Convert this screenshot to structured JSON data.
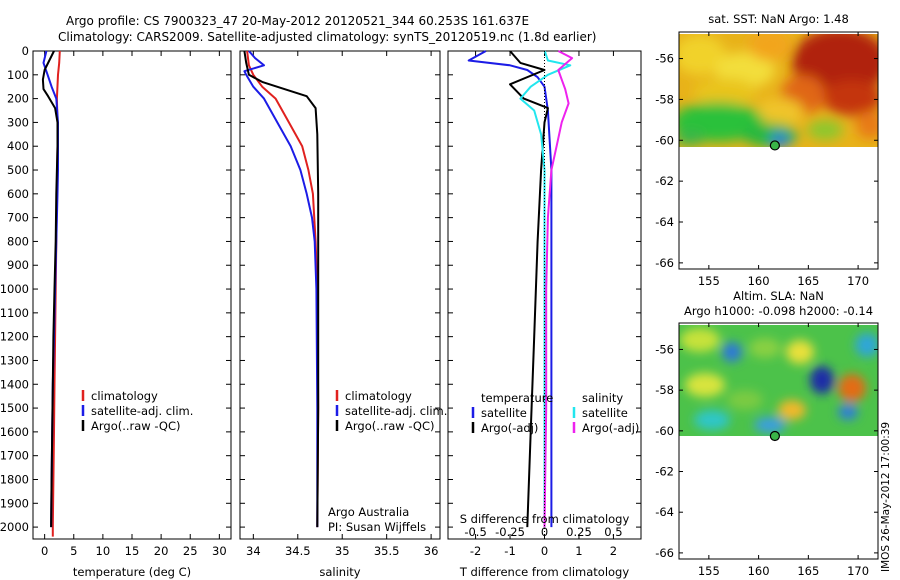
{
  "header": {
    "line1": "Argo profile: CS 7900323_47 20-May-2012 20120521_344 60.253S 161.637E",
    "line2": "Climatology: CARS2009. Satellite-adjusted climatology: synTS_20120519.nc (1.8d earlier)"
  },
  "credit": {
    "line1": "Argo Australia",
    "line2": "PI: Susan Wijffels"
  },
  "stamp": "IMOS 26-May-2012 17:00:39",
  "colors": {
    "climatology": "#e0211f",
    "satellite": "#1c1ce6",
    "argo": "#000000",
    "salinity_satellite": "#22e6ee",
    "salinity_argo": "#ee22ee"
  },
  "chart_data": [
    {
      "type": "line",
      "name": "temperature-profile",
      "xlabel": "temperature (deg C)",
      "ylabel": "",
      "xlim": [
        -2,
        32
      ],
      "ylim": [
        2050,
        0
      ],
      "xticks": [
        0,
        5,
        10,
        15,
        20,
        25,
        30
      ],
      "yticks": [
        0,
        100,
        200,
        300,
        400,
        500,
        600,
        700,
        800,
        900,
        1000,
        1100,
        1200,
        1300,
        1400,
        1500,
        1600,
        1700,
        1800,
        1900,
        2000
      ],
      "legend": {
        "placement": "lower-center",
        "entries": [
          "climatology",
          "satellite-adj. clim.",
          "Argo(..raw -QC)"
        ]
      },
      "series": [
        {
          "name": "climatology",
          "color": "#e0211f",
          "points": [
            [
              2.6,
              0
            ],
            [
              2.5,
              50
            ],
            [
              2.3,
              100
            ],
            [
              2.1,
              200
            ],
            [
              2.2,
              300
            ],
            [
              2.2,
              400
            ],
            [
              2.1,
              600
            ],
            [
              2.0,
              800
            ],
            [
              1.9,
              1000
            ],
            [
              1.8,
              1200
            ],
            [
              1.7,
              1400
            ],
            [
              1.6,
              1600
            ],
            [
              1.5,
              1800
            ],
            [
              1.4,
              2000
            ],
            [
              1.4,
              2040
            ]
          ]
        },
        {
          "name": "satellite-adj. clim.",
          "color": "#1c1ce6",
          "points": [
            [
              0.3,
              0
            ],
            [
              -0.2,
              50
            ],
            [
              0.5,
              100
            ],
            [
              1.2,
              150
            ],
            [
              2.0,
              200
            ],
            [
              2.3,
              300
            ],
            [
              2.3,
              400
            ],
            [
              2.3,
              500
            ],
            [
              2.2,
              600
            ],
            [
              2.0,
              800
            ],
            [
              1.8,
              1000
            ],
            [
              1.6,
              1200
            ],
            [
              1.4,
              1400
            ],
            [
              1.3,
              1600
            ],
            [
              1.2,
              1800
            ],
            [
              1.1,
              2000
            ]
          ]
        },
        {
          "name": "Argo(..raw -QC)",
          "color": "#000000",
          "points": [
            [
              1.6,
              0
            ],
            [
              0.8,
              40
            ],
            [
              0.0,
              80
            ],
            [
              -0.3,
              120
            ],
            [
              -0.2,
              160
            ],
            [
              0.6,
              190
            ],
            [
              1.8,
              240
            ],
            [
              2.2,
              300
            ],
            [
              2.2,
              400
            ],
            [
              2.1,
              500
            ],
            [
              2.0,
              600
            ],
            [
              1.9,
              800
            ],
            [
              1.7,
              1000
            ],
            [
              1.5,
              1200
            ],
            [
              1.4,
              1400
            ],
            [
              1.3,
              1600
            ],
            [
              1.2,
              1800
            ],
            [
              1.1,
              2000
            ]
          ]
        }
      ]
    },
    {
      "type": "line",
      "name": "salinity-profile",
      "xlabel": "salinity",
      "ylabel": "",
      "xlim": [
        33.85,
        36.1
      ],
      "ylim": [
        2050,
        0
      ],
      "xticks": [
        34,
        34.5,
        35,
        35.5,
        36
      ],
      "xtick_labels": [
        "34",
        "34.5",
        "35",
        "35.5",
        "36"
      ],
      "legend": {
        "placement": "lower-center",
        "entries": [
          "climatology",
          "satellite-adj. clim.",
          "Argo(..raw -QC)"
        ]
      },
      "series": [
        {
          "name": "climatology",
          "color": "#e0211f",
          "points": [
            [
              33.93,
              0
            ],
            [
              33.95,
              60
            ],
            [
              34.0,
              100
            ],
            [
              34.1,
              150
            ],
            [
              34.25,
              200
            ],
            [
              34.4,
              300
            ],
            [
              34.55,
              400
            ],
            [
              34.62,
              500
            ],
            [
              34.67,
              600
            ],
            [
              34.7,
              800
            ],
            [
              34.72,
              1000
            ],
            [
              34.73,
              1500
            ],
            [
              34.72,
              2000
            ]
          ]
        },
        {
          "name": "satellite-adj. clim.",
          "color": "#1c1ce6",
          "points": [
            [
              33.95,
              0
            ],
            [
              34.02,
              30
            ],
            [
              34.12,
              60
            ],
            [
              33.9,
              85
            ],
            [
              33.92,
              100
            ],
            [
              34.0,
              150
            ],
            [
              34.12,
              200
            ],
            [
              34.27,
              300
            ],
            [
              34.42,
              400
            ],
            [
              34.53,
              500
            ],
            [
              34.6,
              600
            ],
            [
              34.66,
              700
            ],
            [
              34.69,
              800
            ],
            [
              34.71,
              1000
            ],
            [
              34.72,
              1500
            ],
            [
              34.72,
              2000
            ]
          ]
        },
        {
          "name": "Argo(..raw -QC)",
          "color": "#000000",
          "points": [
            [
              33.9,
              0
            ],
            [
              33.92,
              50
            ],
            [
              33.95,
              100
            ],
            [
              34.1,
              130
            ],
            [
              34.35,
              160
            ],
            [
              34.6,
              190
            ],
            [
              34.7,
              240
            ],
            [
              34.72,
              350
            ],
            [
              34.73,
              600
            ],
            [
              34.73,
              1000
            ],
            [
              34.73,
              1500
            ],
            [
              34.72,
              2000
            ]
          ]
        }
      ]
    },
    {
      "type": "line",
      "name": "difference-from-climatology",
      "xlabel": "T difference from climatology",
      "top_xlabel": "S difference from climatology",
      "xlim": [
        -2.8,
        2.8
      ],
      "ylim": [
        2050,
        0
      ],
      "xticks": [
        -2,
        -1,
        0,
        1,
        2
      ],
      "top_xticks": [
        -0.5,
        -0.25,
        0,
        0.25,
        0.5
      ],
      "legend": {
        "placement": "lower-center",
        "headers": [
          "temperature",
          "salinity"
        ],
        "entries": [
          "satellite",
          "Argo(-adj)",
          "satellite",
          "Argo(-adj)"
        ]
      },
      "series": [
        {
          "name": "temperature satellite",
          "color": "#1c1ce6",
          "points": [
            [
              -1.7,
              0
            ],
            [
              -2.2,
              40
            ],
            [
              -1.0,
              60
            ],
            [
              -0.5,
              80
            ],
            [
              -0.2,
              110
            ],
            [
              0.0,
              150
            ],
            [
              0.1,
              250
            ],
            [
              0.2,
              500
            ],
            [
              0.2,
              1000
            ],
            [
              0.2,
              1500
            ],
            [
              0.2,
              2000
            ]
          ]
        },
        {
          "name": "temperature Argo(-adj)",
          "color": "#000000",
          "points": [
            [
              -1.0,
              0
            ],
            [
              -0.7,
              50
            ],
            [
              0.0,
              80
            ],
            [
              -1.0,
              140
            ],
            [
              -0.6,
              200
            ],
            [
              0.1,
              240
            ],
            [
              0.0,
              300
            ],
            [
              -0.1,
              500
            ],
            [
              -0.2,
              800
            ],
            [
              -0.3,
              1200
            ],
            [
              -0.4,
              1600
            ],
            [
              -0.5,
              2000
            ]
          ]
        },
        {
          "name": "salinity satellite",
          "color": "#22e6ee",
          "points": [
            [
              0.01,
              0
            ],
            [
              0.1,
              40
            ],
            [
              0.75,
              60
            ],
            [
              0.1,
              100
            ],
            [
              -0.4,
              150
            ],
            [
              -0.7,
              200
            ],
            [
              -0.3,
              250
            ],
            [
              -0.1,
              350
            ],
            [
              0.0,
              500
            ],
            [
              0.0,
              1000
            ],
            [
              0.0,
              1500
            ],
            [
              0.0,
              2000
            ]
          ]
        },
        {
          "name": "salinity Argo(-adj)",
          "color": "#ee22ee",
          "points": [
            [
              0.4,
              0
            ],
            [
              0.8,
              30
            ],
            [
              0.4,
              80
            ],
            [
              0.5,
              120
            ],
            [
              0.6,
              160
            ],
            [
              0.7,
              220
            ],
            [
              0.5,
              300
            ],
            [
              0.35,
              400
            ],
            [
              0.2,
              500
            ],
            [
              0.1,
              700
            ],
            [
              0.05,
              1000
            ],
            [
              0.05,
              1500
            ],
            [
              0.0,
              2000
            ]
          ]
        }
      ]
    },
    {
      "type": "heatmap",
      "name": "sst-map",
      "title": "sat. SST: NaN Argo: 1.48",
      "xlim": [
        152,
        172
      ],
      "ylim": [
        -66.3,
        -54.7
      ],
      "xticks": [
        155,
        160,
        165,
        170
      ],
      "yticks": [
        -56,
        -58,
        -60,
        -62,
        -64,
        -66
      ],
      "data_region_ylim": [
        -60.2,
        -54.7
      ],
      "marker": {
        "lon": 161.637,
        "lat": -60.253
      }
    },
    {
      "type": "heatmap",
      "name": "sla-map",
      "title": "Altim. SLA: NaN",
      "subtitle": "Argo h1000: -0.098 h2000: -0.14",
      "xlim": [
        152,
        172
      ],
      "ylim": [
        -66.3,
        -54.7
      ],
      "xticks": [
        155,
        160,
        165,
        170
      ],
      "yticks": [
        -56,
        -58,
        -60,
        -62,
        -64,
        -66
      ],
      "data_region_ylim": [
        -60.2,
        -54.7
      ],
      "marker": {
        "lon": 161.637,
        "lat": -60.253
      }
    }
  ]
}
